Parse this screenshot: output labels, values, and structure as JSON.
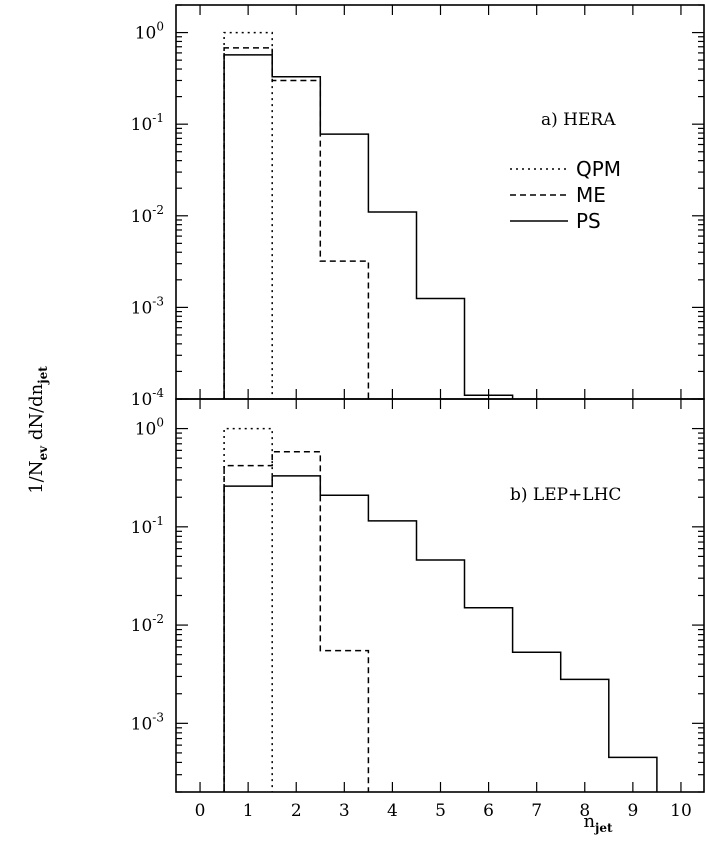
{
  "chart_data": [
    {
      "type": "step",
      "panel_label": "a) HERA",
      "xlabel": "n_jet",
      "ylabel": "1/N_ev dN/dn_jet",
      "xlim": [
        -0.5,
        10.5
      ],
      "ylim": [
        0.0001,
        2
      ],
      "yscale": "log",
      "x_ticks": [
        0,
        1,
        2,
        3,
        4,
        5,
        6,
        7,
        8,
        9,
        10
      ],
      "y_tick_labels": [
        {
          "base": "10",
          "exp": "0",
          "value": 1
        },
        {
          "base": "10",
          "exp": "-1",
          "value": 0.1
        },
        {
          "base": "10",
          "exp": "-2",
          "value": 0.01
        },
        {
          "base": "10",
          "exp": "-3",
          "value": 0.001
        },
        {
          "base": "10",
          "exp": "-4",
          "value": 0.0001
        }
      ],
      "series": [
        {
          "name": "QPM",
          "style": "dotted",
          "bins": [
            1
          ],
          "values": [
            1.0
          ]
        },
        {
          "name": "ME",
          "style": "dashed",
          "bins": [
            1,
            2,
            3
          ],
          "values": [
            0.68,
            0.3,
            0.0032
          ]
        },
        {
          "name": "PS",
          "style": "solid",
          "bins": [
            1,
            2,
            3,
            4,
            5,
            6
          ],
          "values": [
            0.57,
            0.33,
            0.078,
            0.011,
            0.00125,
            0.00011
          ]
        }
      ]
    },
    {
      "type": "step",
      "panel_label": "b) LEP+LHC",
      "xlabel": "n_jet",
      "ylabel": "1/N_ev dN/dn_jet",
      "xlim": [
        -0.5,
        10.5
      ],
      "ylim": [
        0.0002,
        2
      ],
      "yscale": "log",
      "x_ticks": [
        0,
        1,
        2,
        3,
        4,
        5,
        6,
        7,
        8,
        9,
        10
      ],
      "x_tick_labels": [
        "0",
        "1",
        "2",
        "3",
        "4",
        "5",
        "6",
        "7",
        "8",
        "9",
        "10"
      ],
      "y_tick_labels": [
        {
          "base": "10",
          "exp": "0",
          "value": 1
        },
        {
          "base": "10",
          "exp": "-1",
          "value": 0.1
        },
        {
          "base": "10",
          "exp": "-2",
          "value": 0.01
        },
        {
          "base": "10",
          "exp": "-3",
          "value": 0.001
        }
      ],
      "series": [
        {
          "name": "QPM",
          "style": "dotted",
          "bins": [
            1
          ],
          "values": [
            1.0
          ]
        },
        {
          "name": "ME",
          "style": "dashed",
          "bins": [
            1,
            2,
            3
          ],
          "values": [
            0.42,
            0.58,
            0.0055
          ]
        },
        {
          "name": "PS",
          "style": "solid",
          "bins": [
            1,
            2,
            3,
            4,
            5,
            6,
            7,
            8,
            9
          ],
          "values": [
            0.26,
            0.33,
            0.21,
            0.115,
            0.046,
            0.015,
            0.0053,
            0.0028,
            0.00045
          ]
        }
      ]
    }
  ],
  "legend": {
    "items": [
      {
        "label": "QPM",
        "style": "dotted"
      },
      {
        "label": "ME",
        "style": "dashed"
      },
      {
        "label": "PS",
        "style": "solid"
      }
    ]
  },
  "axis_title": {
    "y_main": "1/N",
    "y_sub1": "ev",
    "y_mid": " dN/dn",
    "y_sub2": "jet",
    "x_main": "n",
    "x_sub": "jet"
  }
}
